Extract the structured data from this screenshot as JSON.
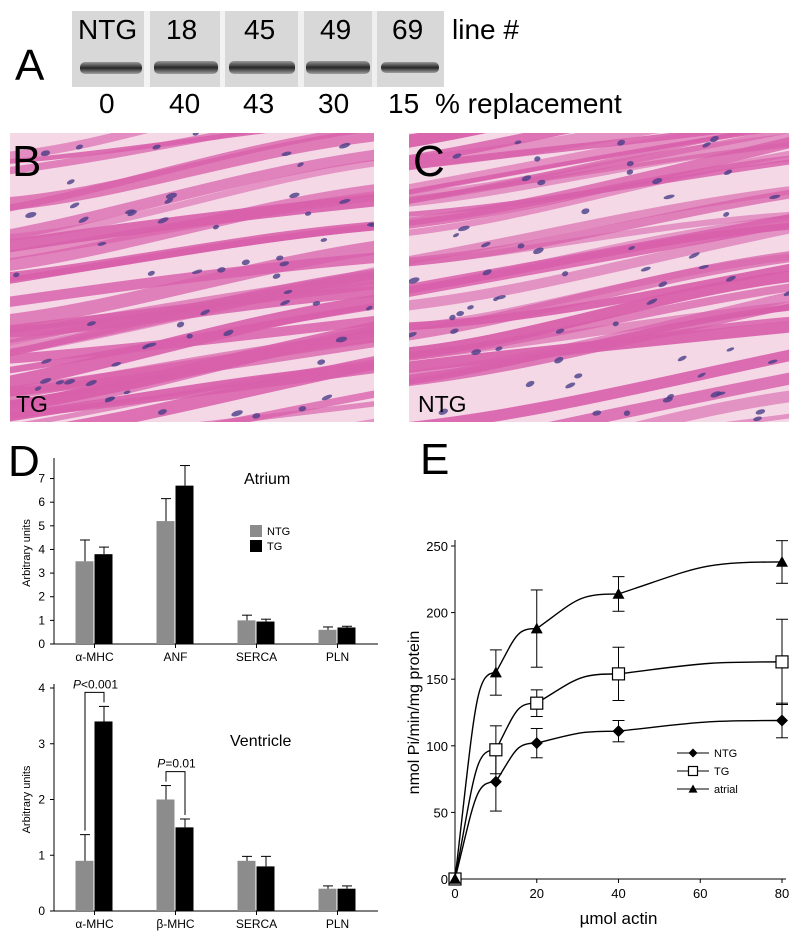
{
  "panels": {
    "a": {
      "letter": "A",
      "lanes": [
        "NTG",
        "18",
        "45",
        "49",
        "69"
      ],
      "lane_caption": "line #",
      "replacement": [
        "0",
        "40",
        "43",
        "30",
        "15"
      ],
      "replacement_caption": "% replacement"
    },
    "b": {
      "letter": "B",
      "label": "TG"
    },
    "c": {
      "letter": "C",
      "label": "NTG"
    },
    "d": {
      "letter": "D"
    },
    "e": {
      "letter": "E"
    }
  },
  "colors": {
    "ntg_bar": "#8c8c8c",
    "tg_bar": "#000000",
    "tissue_bg": "#f4d8e6",
    "tissue_fiber": "#d860ab",
    "nucleus": "#4a3f88"
  },
  "chart_data": [
    {
      "type": "bar",
      "title": "Atrium",
      "ylabel": "Arbitrary units",
      "categories": [
        "α-MHC",
        "ANF",
        "SERCA",
        "PLN"
      ],
      "series": [
        {
          "name": "NTG",
          "values": [
            3.5,
            5.2,
            1.0,
            0.6
          ],
          "errors": [
            0.9,
            0.95,
            0.22,
            0.12
          ]
        },
        {
          "name": "TG",
          "values": [
            3.8,
            6.7,
            0.95,
            0.7
          ],
          "errors": [
            0.3,
            0.85,
            0.1,
            0.05
          ]
        }
      ],
      "ylim": [
        0,
        7.7
      ],
      "yticks": [
        "0",
        "1",
        "2",
        "3",
        "4",
        "5",
        "6",
        "7"
      ],
      "legend": "right"
    },
    {
      "type": "bar",
      "title": "Ventricle",
      "ylabel": "Arbitrary units",
      "categories": [
        "α-MHC",
        "β-MHC",
        "SERCA",
        "PLN"
      ],
      "series": [
        {
          "name": "NTG",
          "values": [
            0.9,
            2.0,
            0.9,
            0.4
          ],
          "errors": [
            0.47,
            0.25,
            0.08,
            0.05
          ]
        },
        {
          "name": "TG",
          "values": [
            3.4,
            1.5,
            0.8,
            0.4
          ],
          "errors": [
            0.27,
            0.15,
            0.18,
            0.05
          ]
        }
      ],
      "ylim": [
        0,
        4
      ],
      "yticks": [
        "0",
        "1",
        "2",
        "3",
        "4"
      ],
      "annotations": [
        {
          "category": "α-MHC",
          "text_prefix": "P",
          "text": "<0.001"
        },
        {
          "category": "β-MHC",
          "text_prefix": "P",
          "text": "=0.01"
        }
      ]
    },
    {
      "type": "line",
      "xlabel": "µmol actin",
      "ylabel": "nmol Pi/min/mg protein",
      "x": [
        0,
        10,
        20,
        40,
        80
      ],
      "xlim": [
        0,
        80
      ],
      "ylim": [
        0,
        250
      ],
      "xticks": [
        "0",
        "20",
        "40",
        "60",
        "80"
      ],
      "yticks": [
        "0",
        "50",
        "100",
        "150",
        "200",
        "250"
      ],
      "series": [
        {
          "name": "NTG",
          "marker": "diamond",
          "values": [
            0,
            73,
            102,
            111,
            119
          ],
          "errors": [
            0,
            22,
            11,
            8,
            13
          ]
        },
        {
          "name": "TG",
          "marker": "square",
          "values": [
            0,
            97,
            132,
            154,
            163
          ],
          "errors": [
            0,
            18,
            10,
            20,
            32
          ]
        },
        {
          "name": "atrial",
          "marker": "triangle",
          "values": [
            0,
            155,
            188,
            214,
            238
          ],
          "errors": [
            0,
            17,
            29,
            13,
            16
          ]
        }
      ],
      "legend": "right"
    }
  ]
}
